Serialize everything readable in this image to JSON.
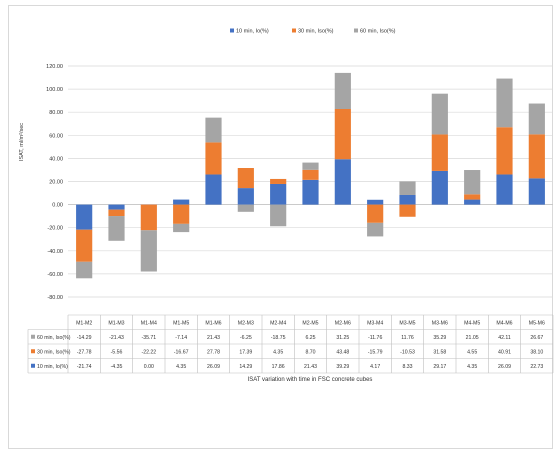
{
  "chart_data": {
    "type": "bar",
    "stacked": true,
    "ylabel": "ISAT, ml/m²/sec",
    "ylim": [
      -80,
      120
    ],
    "yticks": [
      "120.00",
      "100.00",
      "80.00",
      "60.00",
      "40.00",
      "20.00",
      "0.00",
      "-20.00",
      "-40.00",
      "-60.00",
      "-80.00"
    ],
    "grid": true,
    "legend_position": "top",
    "categories": [
      "M1-M2",
      "M1-M3",
      "M1-M4",
      "M1-M5",
      "M1-M6",
      "M2-M3",
      "M2-M4",
      "M2-M5",
      "M2-M6",
      "M3-M4",
      "M3-M5",
      "M3-M6",
      "M4-M5",
      "M4-M6",
      "M5-M6"
    ],
    "series": [
      {
        "name": "10 min, Io(%)",
        "color": "#4472c4",
        "values": [
          -21.74,
          -4.35,
          0.0,
          4.35,
          26.09,
          14.29,
          17.86,
          21.43,
          39.29,
          4.17,
          8.33,
          29.17,
          4.35,
          26.09,
          22.73
        ],
        "labels": [
          "-21.74",
          "-4.35",
          "0.00",
          "4.35",
          "26.09",
          "14.29",
          "17.86",
          "21.43",
          "39.29",
          "4.17",
          "8.33",
          "29.17",
          "4.35",
          "26.09",
          "22.73"
        ]
      },
      {
        "name": "30 min, Iso(%)",
        "color": "#ed7d31",
        "values": [
          -27.78,
          -5.56,
          -22.22,
          -16.67,
          27.78,
          17.39,
          4.35,
          8.7,
          43.48,
          -15.79,
          -10.53,
          31.58,
          4.55,
          40.91,
          38.1
        ],
        "labels": [
          "-27.78",
          "-5.56",
          "-22.22",
          "-16.67",
          "27.78",
          "17.39",
          "4.35",
          "8.70",
          "43.48",
          "-15.79",
          "-10.53",
          "31.58",
          "4.55",
          "40.91",
          "38.10"
        ]
      },
      {
        "name": "60 min, Iso(%)",
        "color": "#a5a5a5",
        "values": [
          -14.29,
          -21.43,
          -35.71,
          -7.14,
          21.43,
          -6.25,
          -18.75,
          6.25,
          31.25,
          -11.76,
          11.76,
          35.29,
          21.05,
          42.11,
          26.67
        ],
        "labels": [
          "-14.29",
          "-21.43",
          "-35.71",
          "-7.14",
          "21.43",
          "-6.25",
          "-18.75",
          "6.25",
          "31.25",
          "-11.76",
          "11.76",
          "35.29",
          "21.05",
          "42.11",
          "26.67"
        ]
      }
    ],
    "caption": "ISAT variation with time in FSC concrete cubes"
  }
}
